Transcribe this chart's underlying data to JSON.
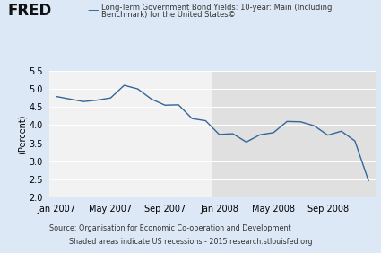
{
  "title_line1": "Long-Term Government Bond Yields: 10-year: Main (Including",
  "title_line2": "Benchmark) for the United States©",
  "ylabel": "(Percent)",
  "source_line1": "Source: Organisation for Economic Co-operation and Development",
  "source_line2": "Shaded areas indicate US recessions - 2015 research.stlouisfed.org",
  "fred_label": "FRED",
  "line_color": "#336699",
  "background_outer": "#dce8f5",
  "background_plot_white": "#f2f2f2",
  "background_plot_shaded": "#e0e0e0",
  "grid_color": "#ffffff",
  "ylim": [
    2.0,
    5.5
  ],
  "yticks": [
    2.0,
    2.5,
    3.0,
    3.5,
    4.0,
    4.5,
    5.0,
    5.5
  ],
  "recession_start_index": 12,
  "xtick_labels": [
    "Jan 2007",
    "May 2007",
    "Sep 2007",
    "Jan 2008",
    "May 2008",
    "Sep 2008"
  ],
  "xtick_positions": [
    0,
    4,
    8,
    12,
    16,
    20
  ],
  "values": [
    4.79,
    4.72,
    4.65,
    4.69,
    4.75,
    5.1,
    5.0,
    4.72,
    4.55,
    4.56,
    4.18,
    4.12,
    3.74,
    3.76,
    3.53,
    3.73,
    3.79,
    4.1,
    4.09,
    3.98,
    3.72,
    3.83,
    3.56,
    2.46
  ]
}
